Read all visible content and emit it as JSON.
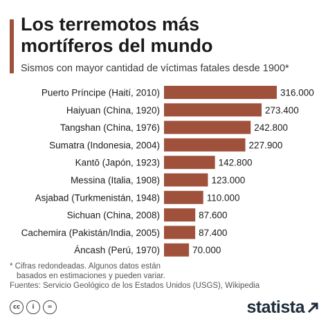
{
  "header": {
    "title": "Los terremotos más\nmortíferos del mundo",
    "subtitle": "Sismos con mayor cantidad de víctimas fatales desde 1900*"
  },
  "chart_data": {
    "type": "bar",
    "orientation": "horizontal",
    "title": "Los terremotos más mortíferos del mundo",
    "subtitle": "Sismos con mayor cantidad de víctimas fatales desde 1900*",
    "categories": [
      "Puerto Príncipe (Haití, 2010)",
      "Haiyuan (China, 1920)",
      "Tangshan (China, 1976)",
      "Sumatra (Indonesia, 2004)",
      "Kantō (Japón, 1923)",
      "Messina (Italia, 1908)",
      "Asjabad (Turkmenistán, 1948)",
      "Sichuan (China, 2008)",
      "Cachemira (Pakistán/India, 2005)",
      "Áncash (Perú, 1970)"
    ],
    "values": [
      316000,
      273400,
      242800,
      227900,
      142800,
      123000,
      110000,
      87600,
      87400,
      70000
    ],
    "value_labels": [
      "316.000",
      "273.400",
      "242.800",
      "227.900",
      "142.800",
      "123.000",
      "110.000",
      "87.600",
      "87.400",
      "70.000"
    ],
    "xlim": [
      0,
      316000
    ],
    "bar_color": "#a0513c",
    "grid": false,
    "legend": "none"
  },
  "footnote": {
    "line1": "* Cifras redondeadas. Algunos datos están",
    "line2": "basados en estimaciones y pueden variar.",
    "sources": "Fuentes: Servicio Geológico de los Estados Unidos (USGS), Wikipedia"
  },
  "footer": {
    "license_icons": [
      {
        "name": "cc-icon",
        "glyph": "cc"
      },
      {
        "name": "attribution-icon",
        "glyph": "i"
      },
      {
        "name": "no-derivatives-icon",
        "glyph": "="
      }
    ],
    "brand": "statista"
  },
  "colors": {
    "accent": "#a0513c",
    "brand": "#1e2d3b"
  }
}
